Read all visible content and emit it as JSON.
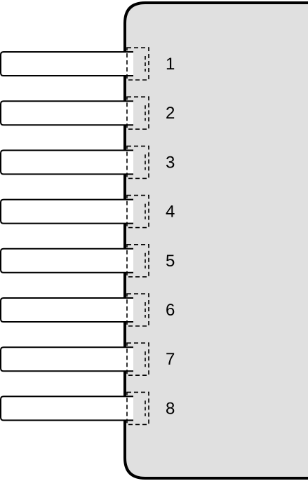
{
  "connector": {
    "body_color": "#e0e0e0",
    "outline_color": "#000000",
    "pins": [
      {
        "label": "1"
      },
      {
        "label": "2"
      },
      {
        "label": "3"
      },
      {
        "label": "4"
      },
      {
        "label": "5"
      },
      {
        "label": "6"
      },
      {
        "label": "7"
      },
      {
        "label": "8"
      }
    ]
  }
}
